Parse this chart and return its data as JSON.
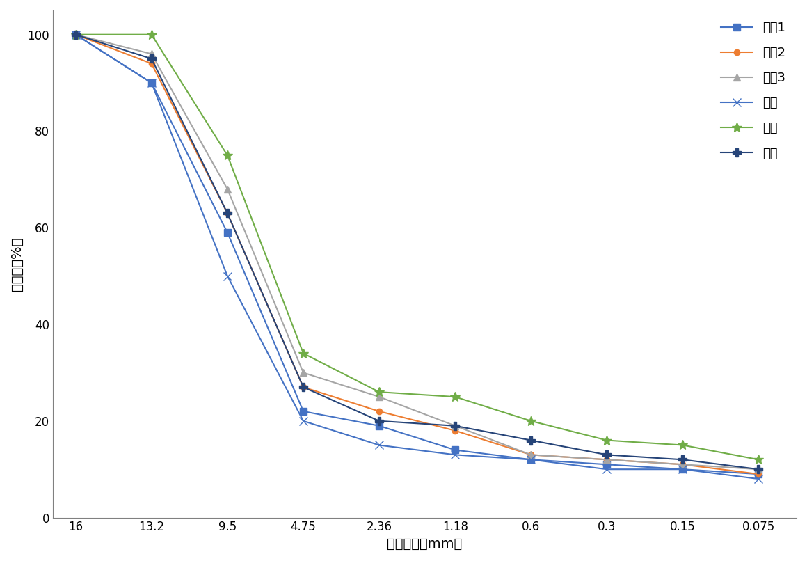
{
  "x_labels": [
    "16",
    "13.2",
    "9.5",
    "4.75",
    "2.36",
    "1.18",
    "0.6",
    "0.3",
    "0.15",
    "0.075"
  ],
  "x_positions": [
    0,
    1,
    2,
    3,
    4,
    5,
    6,
    7,
    8,
    9
  ],
  "series": [
    {
      "name": "级配1",
      "color": "#4472C4",
      "marker": "s",
      "linestyle": "-",
      "linewidth": 1.5,
      "markersize": 7,
      "values": [
        100,
        90,
        59,
        22,
        19,
        14,
        12,
        11,
        10,
        9
      ]
    },
    {
      "name": "级配2",
      "color": "#ED7D31",
      "marker": "o",
      "linestyle": "-",
      "linewidth": 1.5,
      "markersize": 6,
      "values": [
        100,
        94,
        63,
        27,
        22,
        18,
        13,
        12,
        11,
        9
      ]
    },
    {
      "name": "级配3",
      "color": "#A5A5A5",
      "marker": "^",
      "linestyle": "-",
      "linewidth": 1.5,
      "markersize": 7,
      "values": [
        100,
        96,
        68,
        30,
        25,
        19,
        13,
        12,
        11,
        10
      ]
    },
    {
      "name": "下限",
      "color": "#4472C4",
      "marker": "x",
      "linestyle": "-",
      "linewidth": 1.5,
      "markersize": 9,
      "values": [
        100,
        90,
        50,
        20,
        15,
        13,
        12,
        10,
        10,
        8
      ]
    },
    {
      "name": "上限",
      "color": "#70AD47",
      "marker": "*",
      "linestyle": "-",
      "linewidth": 1.5,
      "markersize": 10,
      "values": [
        100,
        100,
        75,
        34,
        26,
        25,
        20,
        16,
        15,
        12
      ]
    },
    {
      "name": "中値",
      "color": "#264478",
      "marker": "P",
      "linestyle": "-",
      "linewidth": 1.5,
      "markersize": 8,
      "values": [
        100,
        95,
        63,
        27,
        20,
        19,
        16,
        13,
        12,
        10
      ]
    }
  ],
  "xlabel": "筛孔尺寸（mm）",
  "ylabel": "通过率（%）",
  "ylim": [
    0,
    105
  ],
  "yticks": [
    0,
    20,
    40,
    60,
    80,
    100
  ],
  "background_color": "#ffffff",
  "legend_fontsize": 13,
  "axis_fontsize": 14,
  "tick_fontsize": 12
}
